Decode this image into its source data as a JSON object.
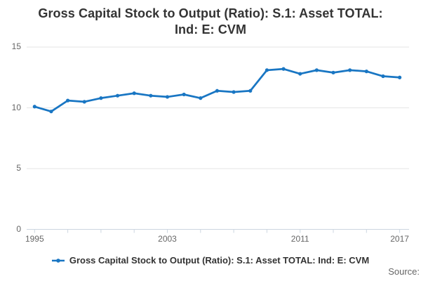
{
  "title": {
    "line1": "Gross Capital Stock to Output (Ratio): S.1: Asset TOTAL:",
    "line2": "Ind: E: CVM"
  },
  "legend": {
    "label": "Gross Capital Stock to Output (Ratio): S.1: Asset TOTAL: Ind: E: CVM",
    "marker": "line-with-dot"
  },
  "source_label": "Source:",
  "colors": {
    "series": "#1976c3",
    "grid": "#e6e6e6",
    "axis": "#ccd6e0",
    "tick_label": "#666666",
    "text": "#333333"
  },
  "chart_data": {
    "type": "line",
    "title": "Gross Capital Stock to Output (Ratio): S.1: Asset TOTAL: Ind: E: CVM",
    "x": [
      1995,
      1996,
      1997,
      1998,
      1999,
      2000,
      2001,
      2002,
      2003,
      2004,
      2005,
      2006,
      2007,
      2008,
      2009,
      2010,
      2011,
      2012,
      2013,
      2014,
      2015,
      2016,
      2017
    ],
    "series": [
      {
        "name": "Gross Capital Stock to Output (Ratio): S.1: Asset TOTAL: Ind: E: CVM",
        "values": [
          10.1,
          9.7,
          10.6,
          10.5,
          10.8,
          11.0,
          11.2,
          11.0,
          10.9,
          11.1,
          10.8,
          11.4,
          11.3,
          11.4,
          13.1,
          13.2,
          12.8,
          13.1,
          12.9,
          13.1,
          13.0,
          12.6,
          12.5
        ]
      }
    ],
    "xlabel": "",
    "ylabel": "",
    "ylim": [
      0,
      15
    ],
    "y_ticks": [
      0,
      5,
      10,
      15
    ],
    "x_tick_years": [
      1995,
      1997,
      1999,
      2001,
      2003,
      2005,
      2007,
      2009,
      2011,
      2013,
      2015,
      2017
    ],
    "x_label_years": [
      1995,
      2003,
      2011,
      2017
    ],
    "grid": "horizontal",
    "legend_position": "bottom"
  }
}
